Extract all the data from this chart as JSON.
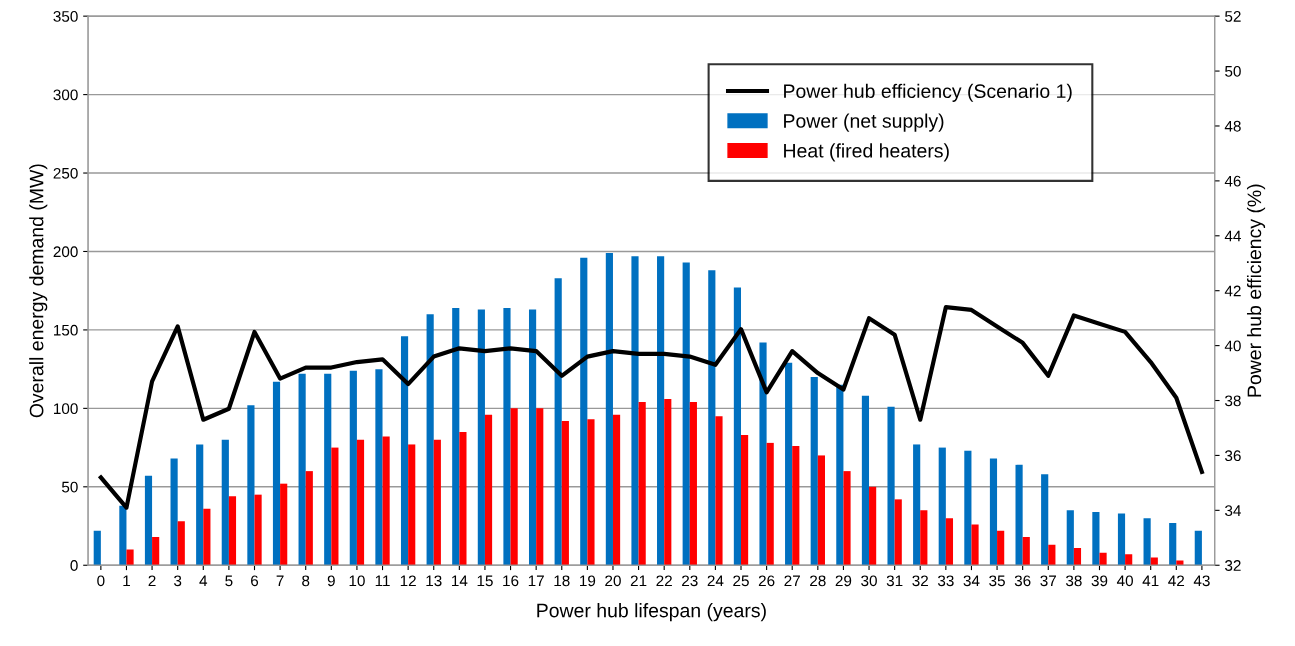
{
  "chart_data": {
    "type": "bar",
    "xlabel": "Power hub lifespan (years)",
    "ylabel": "Overall energy demand (MW)",
    "y2label": "Power hub efficiency (%)",
    "categories": [
      "0",
      "1",
      "2",
      "3",
      "4",
      "5",
      "6",
      "7",
      "8",
      "9",
      "10",
      "11",
      "12",
      "13",
      "14",
      "15",
      "16",
      "17",
      "18",
      "19",
      "20",
      "21",
      "22",
      "23",
      "24",
      "25",
      "26",
      "27",
      "28",
      "29",
      "30",
      "31",
      "32",
      "33",
      "34",
      "35",
      "36",
      "37",
      "38",
      "39",
      "40",
      "41",
      "42",
      "43"
    ],
    "series": [
      {
        "name": "Power hub efficiency (Scenario 1)",
        "type": "line",
        "axis": "y2",
        "color": "#000000",
        "values": [
          35.2,
          34.1,
          38.7,
          40.7,
          37.3,
          37.7,
          40.5,
          38.8,
          39.2,
          39.2,
          39.4,
          39.5,
          38.6,
          39.6,
          39.9,
          39.8,
          39.9,
          39.8,
          38.9,
          39.6,
          39.8,
          39.7,
          39.7,
          39.6,
          39.3,
          40.6,
          38.3,
          39.8,
          39.0,
          38.4,
          41.0,
          40.4,
          37.3,
          41.4,
          41.3,
          40.7,
          40.1,
          38.9,
          41.1,
          40.8,
          40.5,
          39.4,
          38.1,
          35.4
        ]
      },
      {
        "name": "Power (net supply)",
        "color": "#0070c0",
        "values": [
          22,
          38,
          57,
          68,
          77,
          80,
          102,
          117,
          122,
          122,
          124,
          125,
          146,
          160,
          164,
          163,
          164,
          163,
          183,
          196,
          199,
          197,
          197,
          193,
          188,
          177,
          142,
          129,
          120,
          115,
          108,
          101,
          77,
          75,
          73,
          68,
          64,
          58,
          35,
          34,
          33,
          30,
          27,
          22
        ]
      },
      {
        "name": "Heat (fired heaters)",
        "color": "#ff0000",
        "values": [
          0,
          10,
          18,
          28,
          36,
          44,
          45,
          52,
          60,
          75,
          80,
          82,
          77,
          80,
          85,
          96,
          100,
          100,
          92,
          93,
          96,
          104,
          106,
          104,
          95,
          83,
          78,
          76,
          70,
          60,
          50,
          42,
          35,
          30,
          26,
          22,
          18,
          13,
          11,
          8,
          7,
          5,
          3,
          0
        ]
      }
    ],
    "ylim": [
      0,
      350
    ],
    "yticks": [
      0,
      50,
      100,
      150,
      200,
      250,
      300,
      350
    ],
    "y2lim": [
      32,
      52
    ],
    "y2ticks": [
      32,
      34,
      36,
      38,
      40,
      42,
      44,
      46,
      48,
      50,
      52
    ],
    "grid": "y",
    "legend": "top right",
    "line_style": "solid"
  }
}
